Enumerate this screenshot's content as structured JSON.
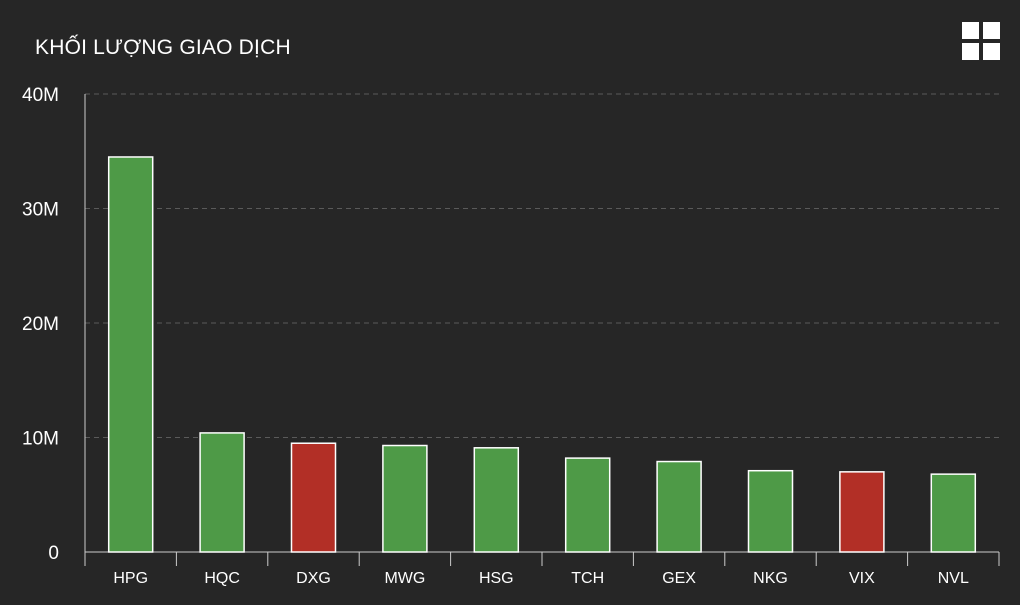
{
  "header": {
    "title": "KHỐI LƯỢNG GIAO DỊCH",
    "menu_icon": "grid-icon"
  },
  "colors": {
    "background": "#262626",
    "up": "#4e9a47",
    "down": "#b22f26",
    "bar_border": "#ffffff",
    "grid": "#5a5a5a",
    "axis": "#cccccc"
  },
  "chart_data": {
    "type": "bar",
    "title": "KHỐI LƯỢNG GIAO DỊCH",
    "xlabel": "",
    "ylabel": "",
    "categories": [
      "HPG",
      "HQC",
      "DXG",
      "MWG",
      "HSG",
      "TCH",
      "GEX",
      "NKG",
      "VIX",
      "NVL"
    ],
    "values": [
      34500000,
      10400000,
      9500000,
      9300000,
      9100000,
      8200000,
      7900000,
      7100000,
      7000000,
      6800000
    ],
    "direction": [
      "up",
      "up",
      "down",
      "up",
      "up",
      "up",
      "up",
      "up",
      "down",
      "up"
    ],
    "ylim": [
      0,
      40000000
    ],
    "y_ticks": [
      {
        "value": 0,
        "label": "0"
      },
      {
        "value": 10000000,
        "label": "10M"
      },
      {
        "value": 20000000,
        "label": "20M"
      },
      {
        "value": 30000000,
        "label": "30M"
      },
      {
        "value": 40000000,
        "label": "40M"
      }
    ],
    "grid": true,
    "grid_style": "dashed",
    "legend": "none"
  }
}
